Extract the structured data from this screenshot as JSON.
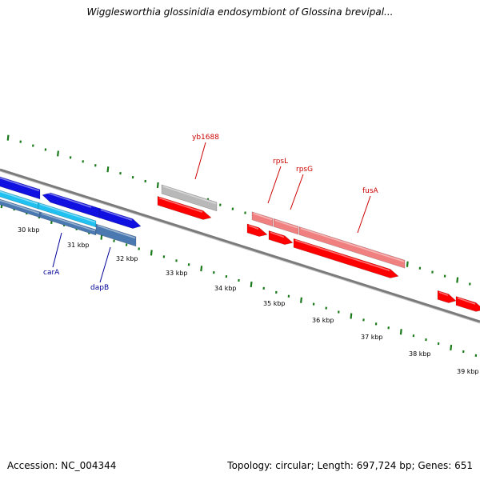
{
  "title": "Wigglesworthia glossinidia endosymbiont of Glossina brevipal...",
  "footer": {
    "accession": "Accession: NC_004344",
    "topology": "Topology: circular; Length: 697,724 bp; Genes: 651"
  },
  "colors": {
    "backbone": "#7a7a7a",
    "tick": "#1a7a1a",
    "blue_gene": "#1010e0",
    "cyan_gene": "#20c0f0",
    "steel_gene": "#4a78b0",
    "gray_gene": "#b8b8b8",
    "red_gene": "#ff0000",
    "pink_gene": "#f08080",
    "red_label": "#cc0000",
    "blue_label": "#000099"
  },
  "kbp_labels": [
    "30 kbp",
    "31 kbp",
    "32 kbp",
    "33 kbp",
    "34 kbp",
    "35 kbp",
    "36 kbp",
    "37 kbp",
    "38 kbp",
    "39 kbp"
  ],
  "gene_labels": [
    {
      "text": "yb1688",
      "color": "red"
    },
    {
      "text": "rpsL",
      "color": "red"
    },
    {
      "text": "rpsG",
      "color": "red"
    },
    {
      "text": "fusA",
      "color": "red"
    },
    {
      "text": "carA",
      "color": "blue"
    },
    {
      "text": "dapB",
      "color": "blue"
    }
  ]
}
